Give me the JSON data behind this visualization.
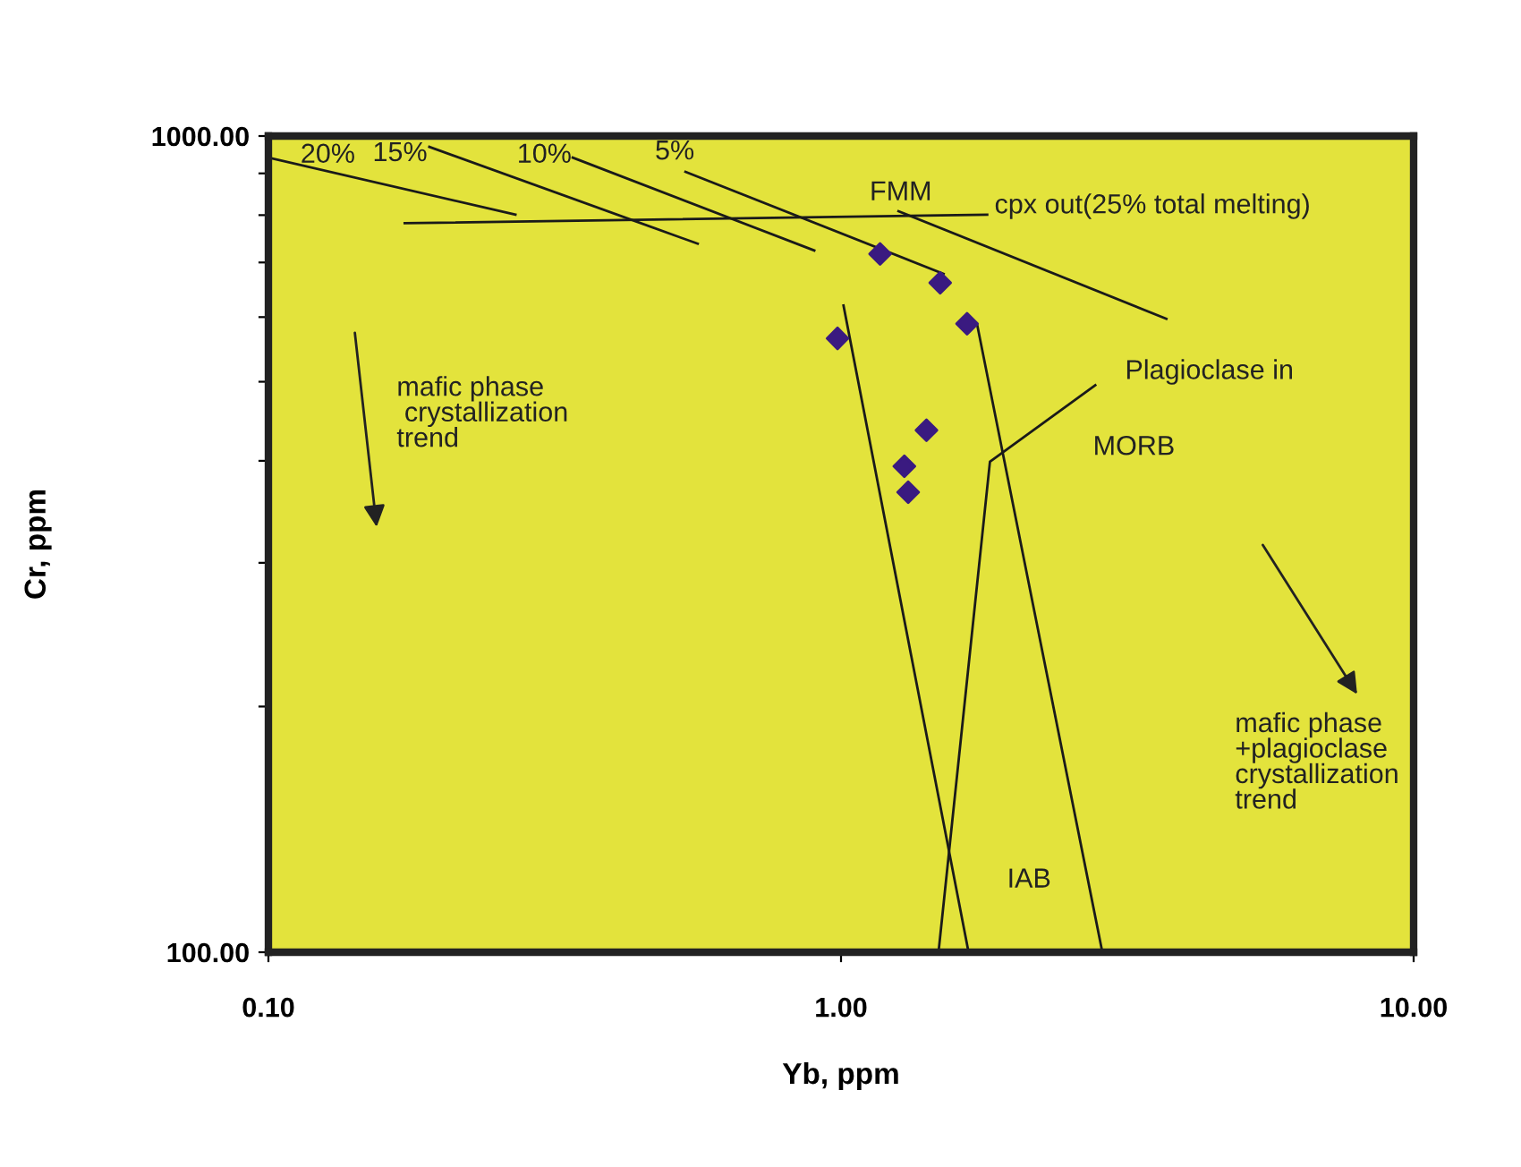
{
  "chart_data": {
    "type": "scatter",
    "xlabel": "Yb, ppm",
    "ylabel": "Cr, ppm",
    "log": "xy",
    "xlim": [
      0.1,
      10
    ],
    "ylim": [
      100,
      1000
    ],
    "xticks": [
      {
        "value": 0.1,
        "label": "0.10"
      },
      {
        "value": 1,
        "label": "1.00"
      },
      {
        "value": 10,
        "label": "10.00"
      }
    ],
    "yticks": [
      {
        "value": 100,
        "label": "100.00"
      },
      {
        "value": 200,
        "label": null
      },
      {
        "value": 300,
        "label": null
      },
      {
        "value": 400,
        "label": null
      },
      {
        "value": 500,
        "label": null
      },
      {
        "value": 600,
        "label": null
      },
      {
        "value": 700,
        "label": null
      },
      {
        "value": 800,
        "label": null
      },
      {
        "value": 900,
        "label": null
      },
      {
        "value": 1000,
        "label": "1000.00"
      }
    ],
    "grid": false,
    "legend": false,
    "series": [
      {
        "marker": "diamond",
        "color": "#3a1a80",
        "x": [
          1.17,
          1.49,
          1.66,
          0.986,
          1.41,
          1.29,
          1.31
        ],
        "values": [
          717,
          661,
          589,
          565,
          436,
          394,
          366
        ]
      },
      {
        "type": "line",
        "color": "#1a1a1a",
        "x": [
          0.1,
          0.27
        ],
        "values": [
          941,
          801
        ]
      },
      {
        "type": "line",
        "color": "#1a1a1a",
        "x": [
          0.191,
          0.562
        ],
        "values": [
          970,
          738
        ]
      },
      {
        "type": "line",
        "color": "#1a1a1a",
        "x": [
          0.34,
          0.898
        ],
        "values": [
          941,
          724
        ]
      },
      {
        "type": "line",
        "color": "#1a1a1a",
        "x": [
          0.535,
          1.51
        ],
        "values": [
          904,
          678
        ]
      },
      {
        "type": "line",
        "color": "#1a1a1a",
        "x": [
          0.173,
          1.8
        ],
        "values": [
          782,
          801
        ]
      },
      {
        "type": "line",
        "color": "#1a1a1a",
        "x": [
          1.26,
          3.7
        ],
        "values": [
          809,
          597
        ]
      },
      {
        "type": "line",
        "color": "#1a1a1a",
        "x": [
          1.01,
          1.67
        ],
        "values": [
          620,
          100
        ]
      },
      {
        "type": "line",
        "color": "#1a1a1a",
        "x": [
          1.73,
          2.86
        ],
        "values": [
          586,
          100
        ]
      },
      {
        "type": "line",
        "color": "#1a1a1a",
        "x": [
          1.48,
          1.82,
          2.78
        ],
        "values": [
          100,
          399,
          495
        ]
      }
    ],
    "annotations": [
      "20%",
      "15%",
      "10%",
      "5%",
      "FMM",
      "cpx out(25% total melting)",
      "Plagioclase in",
      "MORB",
      "IAB",
      "mafic phase\n crystallization\ntrend",
      "mafic phase\n+plagioclase\ncrystallization\ntrend"
    ]
  }
}
